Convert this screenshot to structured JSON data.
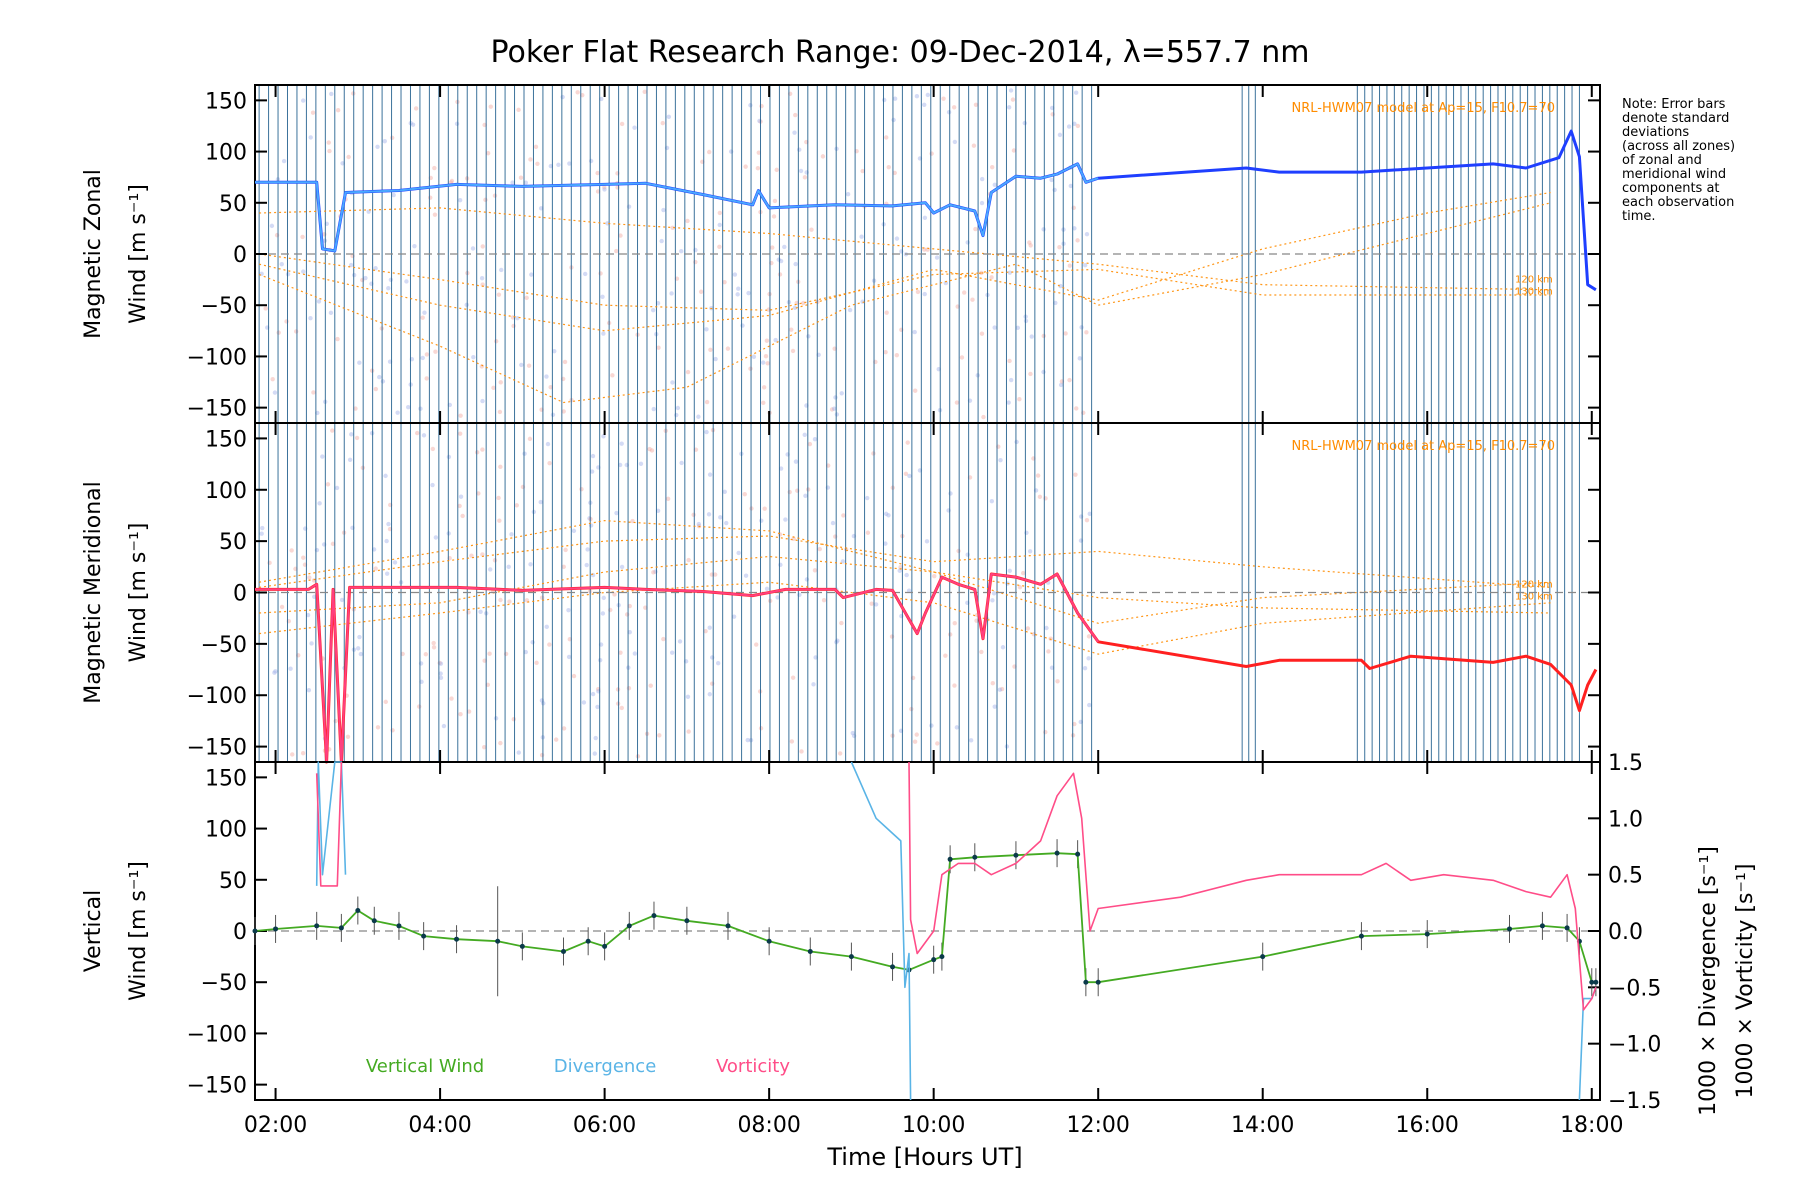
{
  "title": "Poker Flat Research Range: 09-Dec-2014, λ=557.7 nm",
  "note_lines": [
    "Note: Error bars",
    "denote standard",
    "deviations",
    "(across all zones)",
    "of zonal and",
    "meridional wind",
    "components at",
    "each observation",
    "time."
  ],
  "model_label": "NRL-HWM07 model at Ap=15, F10.7=70",
  "altitude_labels": [
    "120 km",
    "130 km"
  ],
  "xlabel": "Time [Hours UT]",
  "x_ticks": [
    "02:00",
    "04:00",
    "06:00",
    "08:00",
    "10:00",
    "12:00",
    "14:00",
    "16:00",
    "18:00"
  ],
  "y_ticks": [
    "150",
    "100",
    "50",
    "0",
    "−50",
    "−100",
    "−150"
  ],
  "y_right_ticks": [
    "1.5",
    "1.0",
    "0.5",
    "0.0",
    "−0.5",
    "−1.0",
    "−1.5"
  ],
  "panels": {
    "zonal": {
      "ylabel_line1": "Magnetic Zonal",
      "ylabel_line2": "Wind [m s⁻¹]"
    },
    "meridional": {
      "ylabel_line1": "Magnetic Meridional",
      "ylabel_line2": "Wind [m s⁻¹]"
    },
    "vertical": {
      "ylabel_line1": "Vertical",
      "ylabel_line2": "Wind [m s⁻¹]"
    },
    "right_label_div": "1000 × Divergence [s⁻¹]",
    "right_label_vort": "1000 × Vorticity [s⁻¹]"
  },
  "legend": {
    "vertical": "Vertical Wind",
    "divergence": "Divergence",
    "vorticity": "Vorticity"
  },
  "colors": {
    "zonal": "#1f3fff",
    "zonal_light": "#4aa8ff",
    "meridional": "#ff2020",
    "meridional_light": "#ff4080",
    "vertical": "#44aa22",
    "divergence": "#5ab4e6",
    "vorticity": "#ff4d88",
    "model": "#ff8c00",
    "obs_lines": "#1a5a8a"
  },
  "chart_data": {
    "type": "line",
    "x_unit": "hours UT",
    "xlim": [
      1.75,
      18.1
    ],
    "ylim": [
      -165,
      165
    ],
    "y2lim": [
      -1.5,
      1.5
    ],
    "zonal_wind": {
      "x": [
        1.75,
        2.5,
        2.57,
        2.72,
        2.85,
        3.5,
        4.2,
        5.0,
        6.0,
        6.5,
        7.2,
        7.8,
        7.87,
        8.0,
        8.8,
        9.5,
        9.9,
        10.0,
        10.2,
        10.5,
        10.6,
        10.7,
        11.0,
        11.3,
        11.5,
        11.75,
        11.85,
        12.0,
        13.8,
        14.2,
        15.2,
        15.6,
        16.8,
        17.2,
        17.6,
        17.75,
        17.85,
        17.95,
        18.05
      ],
      "y": [
        70,
        70,
        5,
        3,
        60,
        62,
        68,
        66,
        68,
        69,
        58,
        48,
        62,
        45,
        48,
        47,
        50,
        40,
        48,
        42,
        18,
        60,
        76,
        74,
        78,
        88,
        70,
        74,
        84,
        80,
        80,
        82,
        88,
        84,
        94,
        120,
        95,
        -30,
        -35
      ]
    },
    "meridional_wind": {
      "x": [
        1.75,
        2.4,
        2.5,
        2.62,
        2.7,
        2.8,
        2.9,
        3.5,
        4.2,
        5.0,
        6.0,
        6.5,
        7.2,
        7.8,
        8.2,
        8.8,
        8.9,
        9.3,
        9.5,
        9.8,
        9.9,
        10.1,
        10.3,
        10.5,
        10.6,
        10.7,
        11.0,
        11.3,
        11.5,
        11.75,
        12.0,
        13.8,
        14.2,
        15.2,
        15.3,
        15.8,
        16.8,
        17.2,
        17.5,
        17.75,
        17.85,
        17.95,
        18.05
      ],
      "y": [
        3,
        3,
        8,
        -165,
        3,
        -165,
        5,
        5,
        5,
        2,
        5,
        3,
        1,
        -3,
        3,
        3,
        -5,
        3,
        2,
        -40,
        -20,
        15,
        8,
        3,
        -45,
        18,
        15,
        8,
        18,
        -20,
        -48,
        -72,
        -66,
        -66,
        -74,
        -62,
        -68,
        -62,
        -70,
        -90,
        -115,
        -90,
        -75
      ]
    },
    "vertical_wind": {
      "x": [
        1.75,
        2.0,
        2.5,
        2.8,
        3.0,
        3.2,
        3.5,
        3.8,
        4.2,
        4.7,
        5.0,
        5.5,
        5.8,
        6.0,
        6.3,
        6.6,
        7.0,
        7.5,
        8.0,
        8.5,
        9.0,
        9.5,
        9.7,
        10.0,
        10.1,
        10.2,
        10.5,
        11.0,
        11.5,
        11.75,
        11.85,
        12.0,
        14.0,
        15.2,
        16.0,
        17.0,
        17.4,
        17.7,
        17.85,
        18.0,
        18.05
      ],
      "y": [
        0,
        2,
        5,
        3,
        20,
        10,
        5,
        -5,
        -8,
        -10,
        -15,
        -20,
        -10,
        -15,
        5,
        15,
        10,
        5,
        -10,
        -20,
        -25,
        -35,
        -38,
        -28,
        -25,
        70,
        72,
        74,
        76,
        75,
        -50,
        -50,
        -25,
        -5,
        -3,
        2,
        5,
        3,
        -10,
        -50,
        -50
      ]
    },
    "divergence": {
      "x": [
        2.5,
        2.52,
        2.57,
        2.72,
        2.8,
        2.85,
        9.0,
        9.3,
        9.6,
        9.65,
        9.7,
        9.72,
        17.85,
        17.9,
        18.0,
        18.05
      ],
      "y": [
        0.4,
        1.5,
        0.5,
        1.5,
        1.5,
        0.5,
        1.5,
        1.0,
        0.8,
        -0.5,
        -0.2,
        -1.5,
        -1.5,
        -0.6,
        -0.6,
        -0.5
      ]
    },
    "vorticity": {
      "x": [
        2.5,
        2.55,
        2.75,
        2.8,
        9.7,
        9.72,
        9.8,
        10.0,
        10.1,
        10.3,
        10.5,
        10.7,
        11.0,
        11.3,
        11.5,
        11.7,
        11.8,
        11.9,
        12.0,
        13.0,
        13.8,
        14.2,
        15.2,
        15.5,
        15.8,
        16.2,
        16.8,
        17.2,
        17.5,
        17.7,
        17.8,
        17.9,
        18.0,
        18.05
      ],
      "y": [
        1.4,
        0.4,
        0.4,
        1.5,
        1.5,
        0.1,
        -0.2,
        0.0,
        0.5,
        0.6,
        0.6,
        0.5,
        0.6,
        0.8,
        1.2,
        1.4,
        1.0,
        0.0,
        0.2,
        0.3,
        0.45,
        0.5,
        0.5,
        0.6,
        0.45,
        0.5,
        0.45,
        0.35,
        0.3,
        0.5,
        0.2,
        -0.7,
        -0.6,
        -0.5
      ]
    }
  }
}
